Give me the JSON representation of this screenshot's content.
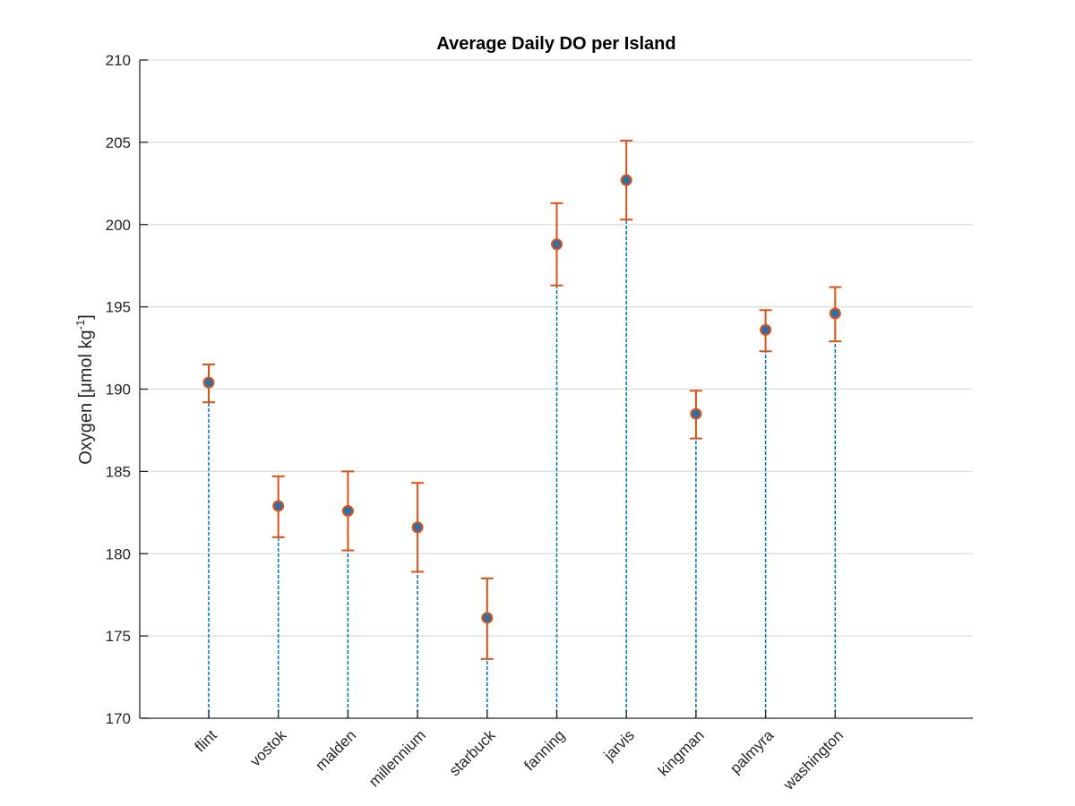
{
  "chart_data": {
    "type": "scatter",
    "title": "Average Daily DO per Island",
    "xlabel": "",
    "ylabel": "Oxygen [μmol kg",
    "ylabel_superscript": "-1",
    "ylabel_suffix": "]",
    "categories": [
      "flint",
      "vostok",
      "malden",
      "millennium",
      "starbuck",
      "fanning",
      "jarvis",
      "kingman",
      "palmyra",
      "washington"
    ],
    "ylim": [
      170,
      210
    ],
    "yticks": [
      170,
      175,
      180,
      185,
      190,
      195,
      200,
      205,
      210
    ],
    "grid": "horizontal",
    "series": [
      {
        "values": [
          190.4,
          182.9,
          182.6,
          181.6,
          176.1,
          198.8,
          202.7,
          188.5,
          193.6,
          194.6
        ],
        "error_low": [
          189.2,
          181.0,
          180.2,
          178.9,
          173.6,
          196.3,
          200.3,
          187.0,
          192.3,
          192.9
        ],
        "error_high": [
          191.5,
          184.7,
          185.0,
          184.3,
          178.5,
          201.3,
          205.1,
          189.9,
          194.8,
          196.2
        ]
      }
    ],
    "colors": {
      "marker_fill": "#2F6FA8",
      "marker_edge": "#D95319",
      "errorbar": "#D95319",
      "stem": "#0072BD",
      "grid": "#DCDCDC",
      "axis": "#262626"
    }
  }
}
